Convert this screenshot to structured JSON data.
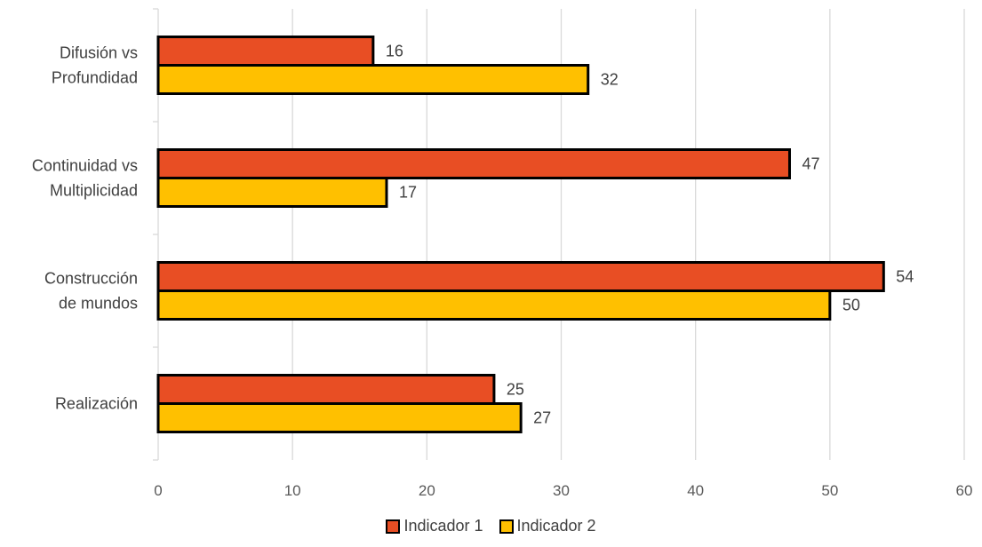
{
  "chart_data": {
    "type": "bar",
    "orientation": "horizontal",
    "categories": [
      "Difusión vs\nProfundidad",
      "Continuidad vs\nMultiplicidad",
      "Construcción\nde mundos",
      "Realización"
    ],
    "series": [
      {
        "name": "Indicador 1",
        "color": "#E84E24",
        "values": [
          16,
          47,
          54,
          25
        ]
      },
      {
        "name": "Indicador 2",
        "color": "#FFC000",
        "values": [
          32,
          17,
          50,
          27
        ]
      }
    ],
    "xlim": [
      0,
      60
    ],
    "xticks": [
      0,
      10,
      20,
      30,
      40,
      50,
      60
    ],
    "grid": true,
    "legend_position": "bottom",
    "title": "",
    "xlabel": "",
    "ylabel": ""
  }
}
